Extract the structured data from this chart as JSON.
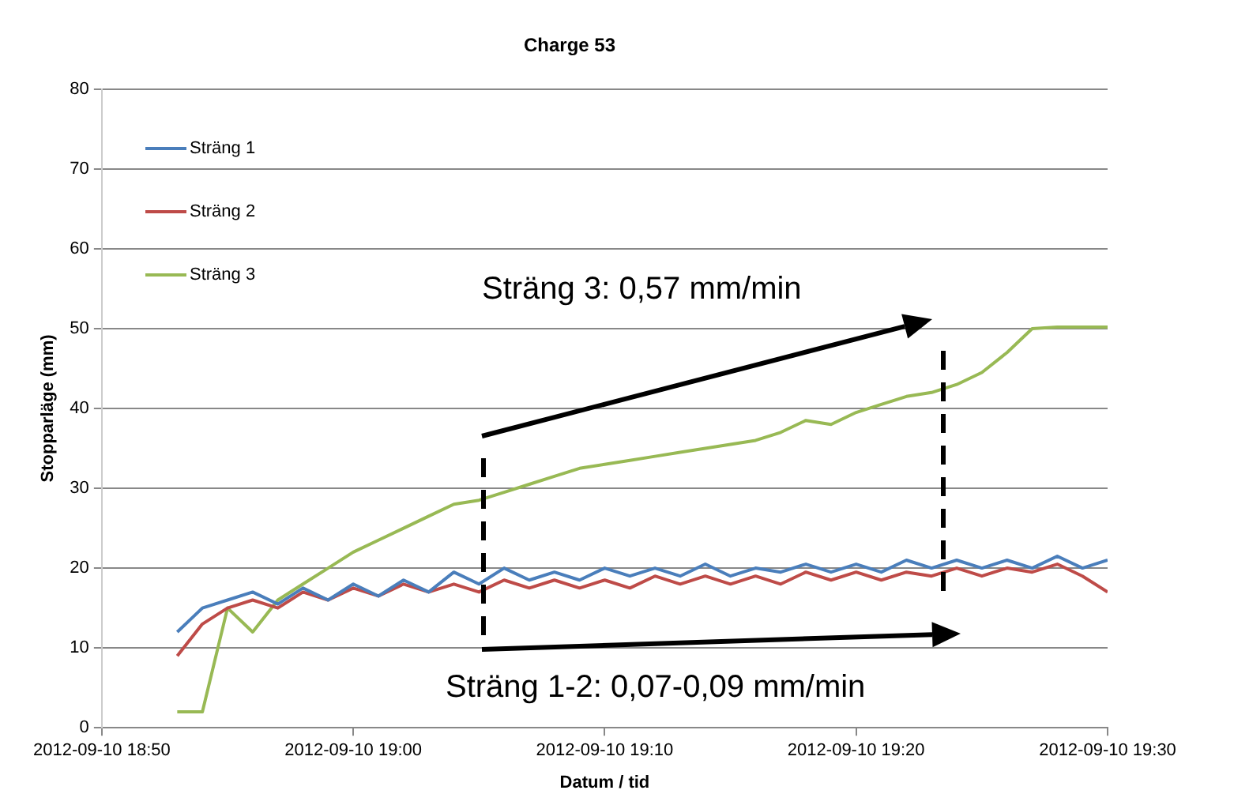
{
  "chart_data": {
    "type": "line",
    "title": "Charge 53",
    "xlabel": "Datum / tid",
    "ylabel": "Stopparläge (mm)",
    "x": [
      "2012-09-10T18:53",
      "2012-09-10T18:54",
      "2012-09-10T18:55",
      "2012-09-10T18:56",
      "2012-09-10T18:57",
      "2012-09-10T18:58",
      "2012-09-10T18:59",
      "2012-09-10T19:00",
      "2012-09-10T19:01",
      "2012-09-10T19:02",
      "2012-09-10T19:03",
      "2012-09-10T19:04",
      "2012-09-10T19:05",
      "2012-09-10T19:06",
      "2012-09-10T19:07",
      "2012-09-10T19:08",
      "2012-09-10T19:09",
      "2012-09-10T19:10",
      "2012-09-10T19:11",
      "2012-09-10T19:12",
      "2012-09-10T19:13",
      "2012-09-10T19:14",
      "2012-09-10T19:15",
      "2012-09-10T19:16",
      "2012-09-10T19:17",
      "2012-09-10T19:18",
      "2012-09-10T19:19",
      "2012-09-10T19:20",
      "2012-09-10T19:21",
      "2012-09-10T19:22",
      "2012-09-10T19:23",
      "2012-09-10T19:24",
      "2012-09-10T19:25",
      "2012-09-10T19:26",
      "2012-09-10T19:27",
      "2012-09-10T19:28",
      "2012-09-10T19:29",
      "2012-09-10T19:30"
    ],
    "series": [
      {
        "name": "Sträng 1",
        "color": "#4a7ebb",
        "values": [
          12,
          15,
          16,
          17,
          15.5,
          17.5,
          16,
          18,
          16.5,
          18.5,
          17,
          19.5,
          18,
          20,
          18.5,
          19.5,
          18.5,
          20,
          19,
          20,
          19,
          20.5,
          19,
          20,
          19.5,
          20.5,
          19.5,
          20.5,
          19.5,
          21,
          20,
          21,
          20,
          21,
          20,
          21.5,
          20,
          21
        ]
      },
      {
        "name": "Sträng 2",
        "color": "#be4b48",
        "values": [
          9,
          13,
          15,
          16,
          15,
          17,
          16,
          17.5,
          16.5,
          18,
          17,
          18,
          17,
          18.5,
          17.5,
          18.5,
          17.5,
          18.5,
          17.5,
          19,
          18,
          19,
          18,
          19,
          18,
          19.5,
          18.5,
          19.5,
          18.5,
          19.5,
          19,
          20,
          19,
          20,
          19.5,
          20.5,
          19,
          17
        ]
      },
      {
        "name": "Sträng 3",
        "color": "#98b954",
        "values": [
          2,
          2,
          15,
          12,
          16,
          18,
          20,
          22,
          23.5,
          25,
          26.5,
          28,
          28.5,
          29.5,
          30.5,
          31.5,
          32.5,
          33,
          33.5,
          34,
          34.5,
          35,
          35.5,
          36,
          37,
          38.5,
          38,
          39.5,
          40.5,
          41.5,
          42,
          43,
          44.5,
          47,
          50,
          50.2,
          50.2,
          50.2
        ]
      }
    ],
    "xlim": [
      "2012-09-10T18:50",
      "2012-09-10T19:30"
    ],
    "xticks": [
      {
        "value": "2012-09-10T18:50",
        "label": "2012-09-10 18:50"
      },
      {
        "value": "2012-09-10T19:00",
        "label": "2012-09-10 19:00"
      },
      {
        "value": "2012-09-10T19:10",
        "label": "2012-09-10 19:10"
      },
      {
        "value": "2012-09-10T19:20",
        "label": "2012-09-10 19:20"
      },
      {
        "value": "2012-09-10T19:30",
        "label": "2012-09-10 19:30"
      }
    ],
    "ylim": [
      0,
      80
    ],
    "yticks": [
      0,
      10,
      20,
      30,
      40,
      50,
      60,
      70,
      80
    ],
    "grid": "y",
    "legend": "top left",
    "marker": "none",
    "line_style": "solid",
    "annotations": [
      "Sträng 3: 0,57 mm/min",
      "Sträng 1-2: 0,07-0,09 mm/min"
    ]
  }
}
